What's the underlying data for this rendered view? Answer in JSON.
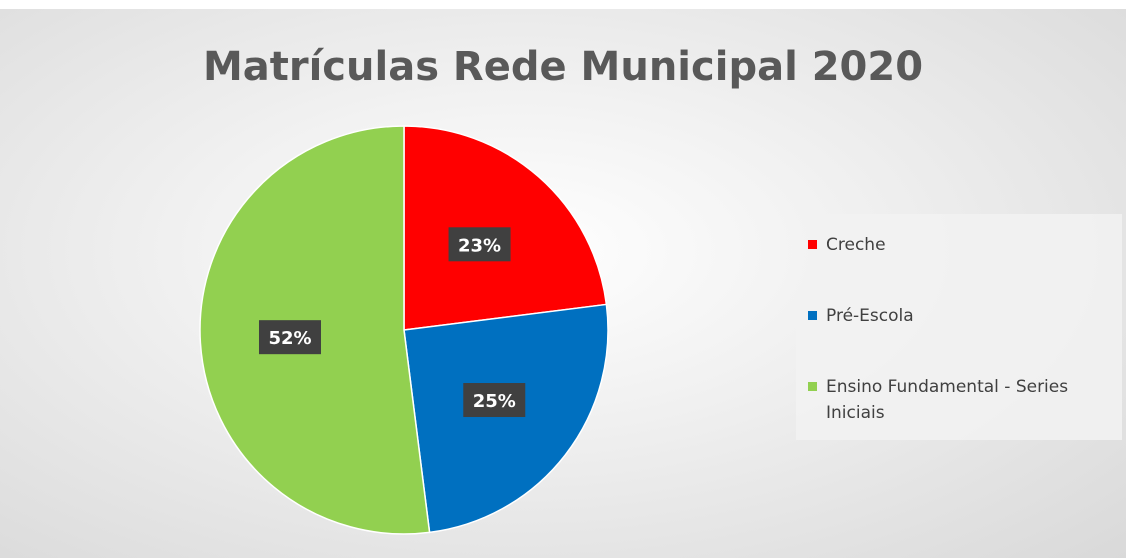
{
  "chart_data": {
    "type": "pie",
    "title": "Matrículas Rede Municipal 2020",
    "legend_position": "right",
    "slices": [
      {
        "label": "Creche",
        "value": 23,
        "display": "23%",
        "color": "#ff0000"
      },
      {
        "label": "Pré-Escola",
        "value": 25,
        "display": "25%",
        "color": "#0070c0"
      },
      {
        "label": "Ensino Fundamental - Series Iniciais",
        "value": 52,
        "display": "52%",
        "color": "#92d050"
      }
    ]
  }
}
